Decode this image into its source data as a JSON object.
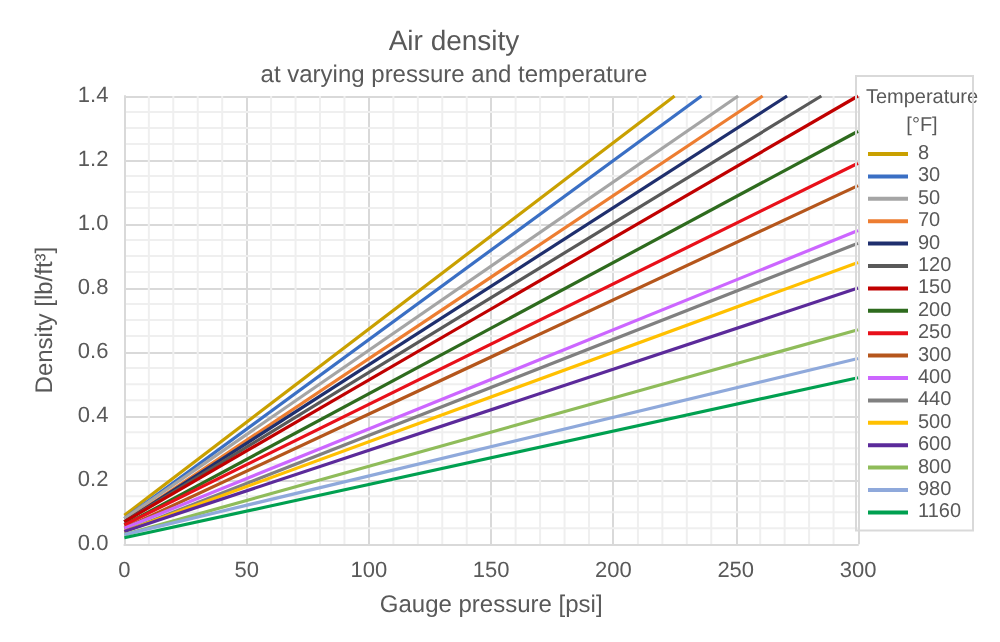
{
  "chart_data": {
    "type": "line",
    "title": "Air density",
    "subtitle": "at varying pressure and temperature",
    "xlabel": "Gauge pressure [psi]",
    "ylabel": "Density [lb/ft³]",
    "legend_title": "Temperature\n[°F]",
    "xlim": [
      0,
      300
    ],
    "xticks": [
      0,
      50,
      100,
      150,
      200,
      250,
      300
    ],
    "ylim": [
      0,
      1.4
    ],
    "yticks": [
      {
        "value": 0,
        "label": "0.0"
      },
      0.2,
      0.4,
      0.6,
      0.8,
      {
        "value": 1,
        "label": "1.0"
      },
      1.2,
      1.4
    ],
    "grid": true,
    "legend": "right",
    "marker": "none",
    "line_style": "solid",
    "series": [
      {
        "name": "8",
        "color": "#c9a000",
        "x": [
          0,
          225
        ],
        "values": [
          0.09,
          1.4
        ]
      },
      {
        "name": "30",
        "color": "#3a6fc4",
        "x": [
          0,
          236
        ],
        "values": [
          0.08,
          1.4
        ]
      },
      {
        "name": "50",
        "color": "#a5a5a5",
        "x": [
          0,
          251
        ],
        "values": [
          0.08,
          1.4
        ]
      },
      {
        "name": "70",
        "color": "#ed7d31",
        "x": [
          0,
          261
        ],
        "values": [
          0.07,
          1.4
        ]
      },
      {
        "name": "90",
        "color": "#1f2f6e",
        "x": [
          0,
          271
        ],
        "values": [
          0.07,
          1.4
        ]
      },
      {
        "name": "120",
        "color": "#595959",
        "x": [
          0,
          285
        ],
        "values": [
          0.07,
          1.4
        ]
      },
      {
        "name": "150",
        "color": "#c00000",
        "x": [
          0,
          300
        ],
        "values": [
          0.07,
          1.4
        ]
      },
      {
        "name": "200",
        "color": "#2e6b1e",
        "x": [
          0,
          300
        ],
        "values": [
          0.06,
          1.29
        ]
      },
      {
        "name": "250",
        "color": "#e8101a",
        "x": [
          0,
          300
        ],
        "values": [
          0.06,
          1.19
        ]
      },
      {
        "name": "300",
        "color": "#b5561c",
        "x": [
          0,
          300
        ],
        "values": [
          0.05,
          1.12
        ]
      },
      {
        "name": "400",
        "color": "#cc66ff",
        "x": [
          0,
          300
        ],
        "values": [
          0.05,
          0.98
        ]
      },
      {
        "name": "440",
        "color": "#808080",
        "x": [
          0,
          300
        ],
        "values": [
          0.04,
          0.94
        ]
      },
      {
        "name": "500",
        "color": "#ffc000",
        "x": [
          0,
          300
        ],
        "values": [
          0.04,
          0.88
        ]
      },
      {
        "name": "600",
        "color": "#5b2a9a",
        "x": [
          0,
          300
        ],
        "values": [
          0.04,
          0.8
        ]
      },
      {
        "name": "800",
        "color": "#8fbc5a",
        "x": [
          0,
          300
        ],
        "values": [
          0.03,
          0.67
        ]
      },
      {
        "name": "980",
        "color": "#8fa9db",
        "x": [
          0,
          300
        ],
        "values": [
          0.03,
          0.58
        ]
      },
      {
        "name": "1160",
        "color": "#00a050",
        "x": [
          0,
          300
        ],
        "values": [
          0.02,
          0.52
        ]
      }
    ]
  }
}
